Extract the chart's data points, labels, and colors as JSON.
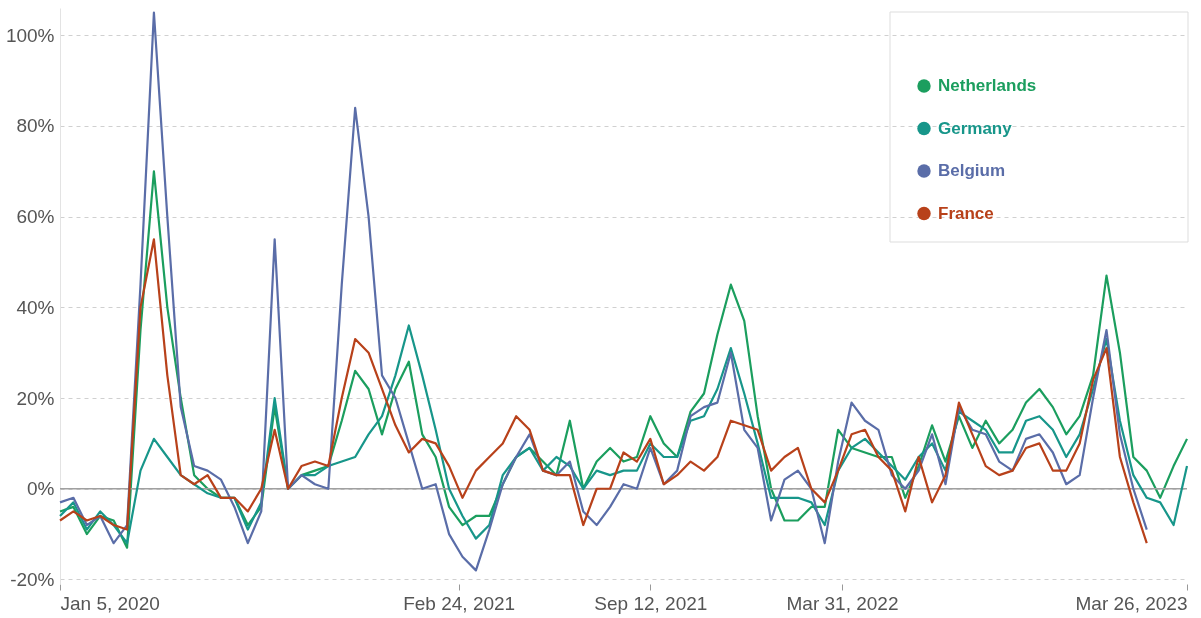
{
  "chart_data": {
    "type": "line",
    "x": [
      "2020-01-05",
      "2020-01-19",
      "2020-02-02",
      "2020-02-16",
      "2020-03-01",
      "2020-03-15",
      "2020-03-29",
      "2020-04-12",
      "2020-04-26",
      "2020-05-10",
      "2020-05-24",
      "2020-06-07",
      "2020-06-21",
      "2020-07-05",
      "2020-07-19",
      "2020-08-02",
      "2020-08-16",
      "2020-08-30",
      "2020-09-13",
      "2020-09-27",
      "2020-10-11",
      "2020-10-25",
      "2020-11-08",
      "2020-11-22",
      "2020-12-06",
      "2020-12-20",
      "2021-01-03",
      "2021-01-17",
      "2021-01-31",
      "2021-02-14",
      "2021-02-28",
      "2021-03-14",
      "2021-03-28",
      "2021-04-11",
      "2021-04-25",
      "2021-05-09",
      "2021-05-23",
      "2021-06-06",
      "2021-06-20",
      "2021-07-04",
      "2021-07-18",
      "2021-08-01",
      "2021-08-15",
      "2021-08-29",
      "2021-09-12",
      "2021-09-26",
      "2021-10-10",
      "2021-10-24",
      "2021-11-07",
      "2021-11-21",
      "2021-12-05",
      "2021-12-19",
      "2022-01-02",
      "2022-01-16",
      "2022-01-30",
      "2022-02-13",
      "2022-02-27",
      "2022-03-13",
      "2022-03-27",
      "2022-04-10",
      "2022-04-24",
      "2022-05-08",
      "2022-05-22",
      "2022-06-05",
      "2022-06-19",
      "2022-07-03",
      "2022-07-17",
      "2022-07-31",
      "2022-08-14",
      "2022-08-28",
      "2022-09-11",
      "2022-09-25",
      "2022-10-09",
      "2022-10-23",
      "2022-11-06",
      "2022-11-20",
      "2022-12-04",
      "2022-12-18",
      "2023-01-01",
      "2023-01-15",
      "2023-01-29",
      "2023-02-12",
      "2023-02-26",
      "2023-03-12",
      "2023-03-26"
    ],
    "series": [
      {
        "name": "Netherlands",
        "color": "#1b9e5e",
        "values": [
          -5,
          -4,
          -10,
          -6,
          -7,
          -13,
          35,
          70,
          40,
          20,
          3,
          0,
          -2,
          -2,
          -8,
          -4,
          18,
          0,
          3,
          4,
          5,
          15,
          26,
          22,
          12,
          22,
          28,
          12,
          7,
          -4,
          -8,
          -6,
          -6,
          1,
          7,
          9,
          6,
          3,
          15,
          0,
          6,
          9,
          6,
          7,
          16,
          10,
          7,
          17,
          21,
          34,
          45,
          37,
          16,
          0,
          -7,
          -7,
          -4,
          -4,
          13,
          9,
          8,
          7,
          7,
          -2,
          5,
          14,
          6,
          16,
          9,
          15,
          10,
          13,
          19,
          22,
          18,
          12,
          16,
          25,
          47,
          30,
          7,
          4,
          -2,
          5,
          11
        ]
      },
      {
        "name": "Germany",
        "color": "#17968a",
        "values": [
          -6,
          -3,
          -9,
          -5,
          -8,
          -12,
          4,
          11,
          7,
          3,
          1,
          -1,
          -2,
          -2,
          -9,
          -3,
          20,
          0,
          3,
          3,
          5,
          6,
          7,
          12,
          16,
          25,
          36,
          25,
          13,
          0,
          -6,
          -11,
          -8,
          3,
          7,
          9,
          4,
          7,
          5,
          0,
          4,
          3,
          4,
          4,
          10,
          7,
          7,
          15,
          16,
          22,
          31,
          21,
          10,
          -2,
          -2,
          -2,
          -3,
          -8,
          4,
          9,
          11,
          8,
          5,
          2,
          7,
          10,
          4,
          17,
          15,
          13,
          8,
          8,
          15,
          16,
          13,
          7,
          12,
          22,
          33,
          15,
          3,
          -2,
          -3,
          -8,
          5
        ]
      },
      {
        "name": "Belgium",
        "color": "#5a6da8",
        "values": [
          -3,
          -2,
          -8,
          -6,
          -12,
          -8,
          45,
          105,
          60,
          18,
          5,
          4,
          2,
          -4,
          -12,
          -5,
          55,
          0,
          3,
          1,
          0,
          45,
          84,
          60,
          25,
          20,
          10,
          0,
          1,
          -10,
          -15,
          -18,
          -9,
          1,
          7,
          12,
          4,
          3,
          6,
          -5,
          -8,
          -4,
          1,
          0,
          9,
          1,
          4,
          16,
          18,
          19,
          30,
          13,
          9,
          -7,
          2,
          4,
          0,
          -12,
          6,
          19,
          15,
          13,
          3,
          0,
          4,
          12,
          1,
          18,
          13,
          12,
          6,
          4,
          11,
          12,
          8,
          1,
          3,
          20,
          35,
          12,
          0,
          -9,
          null,
          null,
          null
        ]
      },
      {
        "name": "France",
        "color": "#b8411a",
        "values": [
          -7,
          -5,
          -7,
          -6,
          -8,
          -9,
          40,
          55,
          25,
          3,
          1,
          3,
          -2,
          -2,
          -5,
          0,
          13,
          0,
          5,
          6,
          5,
          20,
          33,
          30,
          22,
          14,
          8,
          11,
          10,
          5,
          -2,
          4,
          7,
          10,
          16,
          13,
          4,
          3,
          3,
          -8,
          0,
          0,
          8,
          6,
          11,
          1,
          3,
          6,
          4,
          7,
          15,
          14,
          13,
          4,
          7,
          9,
          0,
          -3,
          4,
          12,
          13,
          7,
          4,
          -5,
          7,
          -3,
          3,
          19,
          12,
          5,
          3,
          4,
          9,
          10,
          4,
          4,
          10,
          24,
          31,
          7,
          -3,
          -12,
          null,
          null,
          null
        ]
      }
    ],
    "xlim": [
      "2020-01-05",
      "2023-03-26"
    ],
    "xticks": [
      {
        "value": "2020-01-05",
        "label": "Jan 5, 2020"
      },
      {
        "value": "2021-02-24",
        "label": "Feb 24, 2021"
      },
      {
        "value": "2021-09-12",
        "label": "Sep 12, 2021"
      },
      {
        "value": "2022-03-31",
        "label": "Mar 31, 2022"
      },
      {
        "value": "2023-03-26",
        "label": "Mar 26, 2023"
      }
    ],
    "ylim": [
      -21,
      106
    ],
    "yticks": [
      {
        "value": -20,
        "label": "-20%"
      },
      {
        "value": 0,
        "label": "0%"
      },
      {
        "value": 20,
        "label": "20%"
      },
      {
        "value": 40,
        "label": "40%"
      },
      {
        "value": 60,
        "label": "60%"
      },
      {
        "value": 80,
        "label": "80%"
      },
      {
        "value": 100,
        "label": "100%"
      }
    ],
    "ref_lines": [
      {
        "axis": "y",
        "value": 0,
        "color": "#a0a0a0"
      }
    ],
    "grid": "y",
    "legend": "top right"
  }
}
